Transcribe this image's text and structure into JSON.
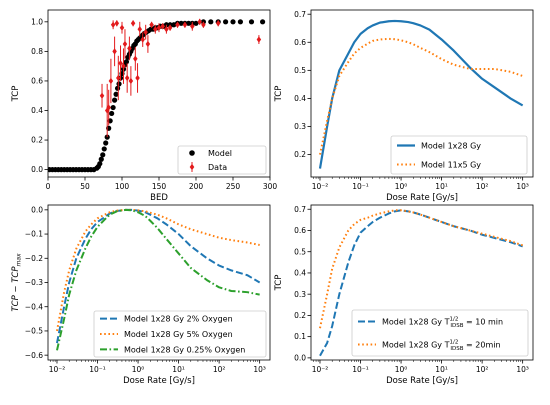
{
  "chart_data": [
    {
      "type": "scatter",
      "xlabel": "BED",
      "ylabel": "TCP",
      "xlim": [
        0,
        300
      ],
      "ylim": [
        -0.05,
        1.08
      ],
      "xticks": [
        0,
        50,
        100,
        150,
        200,
        250,
        300
      ],
      "xtick_labels": [
        "0",
        "50",
        "100",
        "150",
        "200",
        "250",
        "300"
      ],
      "yticks": [
        0.0,
        0.2,
        0.4,
        0.6,
        0.8,
        1.0
      ],
      "ytick_labels": [
        "0.0",
        "0.2",
        "0.4",
        "0.6",
        "0.8",
        "1.0"
      ],
      "legend_position": "bottom-right",
      "series": [
        {
          "name": "Model",
          "color": "#000000",
          "marker": "circle",
          "x": [
            2,
            6,
            10,
            14,
            18,
            22,
            26,
            30,
            34,
            38,
            42,
            46,
            50,
            54,
            58,
            62,
            66,
            68,
            70,
            72,
            74,
            76,
            78,
            80,
            82,
            84,
            86,
            88,
            90,
            92,
            94,
            96,
            98,
            100,
            102,
            104,
            106,
            108,
            110,
            112,
            114,
            116,
            118,
            120,
            122,
            124,
            126,
            128,
            130,
            133,
            136,
            139,
            142,
            145,
            148,
            152,
            156,
            160,
            165,
            170,
            175,
            180,
            185,
            190,
            195,
            200,
            210,
            220,
            230,
            240,
            250,
            260,
            275,
            290
          ],
          "y": [
            0,
            0,
            0,
            0,
            0,
            0,
            0,
            0,
            0,
            0,
            0,
            0,
            0,
            0,
            0,
            0,
            0.01,
            0.02,
            0.04,
            0.07,
            0.1,
            0.14,
            0.18,
            0.22,
            0.28,
            0.33,
            0.38,
            0.42,
            0.47,
            0.51,
            0.55,
            0.58,
            0.62,
            0.65,
            0.68,
            0.71,
            0.73,
            0.76,
            0.78,
            0.8,
            0.82,
            0.84,
            0.85,
            0.87,
            0.88,
            0.89,
            0.9,
            0.91,
            0.92,
            0.93,
            0.94,
            0.95,
            0.95,
            0.96,
            0.96,
            0.97,
            0.97,
            0.98,
            0.98,
            0.98,
            0.99,
            0.99,
            0.99,
            0.99,
            0.99,
            0.99,
            1.0,
            1.0,
            1.0,
            1.0,
            1.0,
            1.0,
            1.0,
            1.0
          ]
        },
        {
          "name": "Data",
          "color": "#e31a1c",
          "marker": "diamond",
          "x": [
            73,
            80,
            82,
            85,
            88,
            90,
            93,
            95,
            98,
            100,
            102,
            104,
            107,
            110,
            112,
            115,
            118,
            121,
            124,
            128,
            132,
            135,
            140,
            145,
            150,
            155,
            160,
            165,
            175,
            185,
            195,
            205,
            210,
            230,
            285
          ],
          "y": [
            0.5,
            0.4,
            0.42,
            0.6,
            0.98,
            0.8,
            0.99,
            0.62,
            0.72,
            0.96,
            0.7,
            0.85,
            0.62,
            0.82,
            0.6,
            0.99,
            0.75,
            0.62,
            0.95,
            0.88,
            0.93,
            0.85,
            0.98,
            0.95,
            0.96,
            0.97,
            0.95,
            0.96,
            0.98,
            0.98,
            0.97,
            1.0,
            0.98,
            0.99,
            0.88
          ],
          "err": [
            0.08,
            0.18,
            0.12,
            0.15,
            0.03,
            0.1,
            0.02,
            0.15,
            0.12,
            0.04,
            0.12,
            0.1,
            0.1,
            0.08,
            0.1,
            0.02,
            0.08,
            0.1,
            0.05,
            0.05,
            0.05,
            0.06,
            0.02,
            0.03,
            0.03,
            0.02,
            0.03,
            0.02,
            0.02,
            0.02,
            0.03,
            0.02,
            0.02,
            0.02,
            0.03
          ]
        }
      ]
    },
    {
      "type": "line",
      "xscale": "log",
      "xlabel": "Dose Rate [Gy/s]",
      "ylabel": "TCP",
      "xlim": [
        0.006,
        1800
      ],
      "ylim": [
        0.12,
        0.715
      ],
      "xticks": [
        0.01,
        0.1,
        1,
        10,
        100,
        1000
      ],
      "xtick_labels": [
        "10⁻²",
        "10⁻¹",
        "10⁰",
        "10¹",
        "10²",
        "10³"
      ],
      "yticks": [
        0.2,
        0.3,
        0.4,
        0.5,
        0.6,
        0.7
      ],
      "ytick_labels": [
        "0.2",
        "0.3",
        "0.4",
        "0.5",
        "0.6",
        "0.7"
      ],
      "legend_position": "bottom-right",
      "series": [
        {
          "name": "Model 1x28 Gy",
          "color": "#1f77b4",
          "style": "solid",
          "x": [
            0.01,
            0.015,
            0.02,
            0.03,
            0.05,
            0.07,
            0.1,
            0.15,
            0.2,
            0.3,
            0.5,
            0.7,
            1,
            1.5,
            2,
            3,
            5,
            10,
            20,
            50,
            100,
            200,
            500,
            1000
          ],
          "y": [
            0.15,
            0.3,
            0.4,
            0.5,
            0.56,
            0.6,
            0.63,
            0.65,
            0.66,
            0.67,
            0.675,
            0.676,
            0.675,
            0.672,
            0.668,
            0.66,
            0.645,
            0.61,
            0.57,
            0.51,
            0.47,
            0.44,
            0.4,
            0.375
          ]
        },
        {
          "name": "Model 11x5 Gy",
          "color": "#ff7f0e",
          "style": "dotted",
          "x": [
            0.01,
            0.015,
            0.02,
            0.03,
            0.05,
            0.07,
            0.1,
            0.15,
            0.2,
            0.3,
            0.5,
            0.7,
            1,
            1.5,
            2,
            3,
            5,
            10,
            20,
            50,
            100,
            200,
            500,
            1000
          ],
          "y": [
            0.2,
            0.32,
            0.4,
            0.48,
            0.53,
            0.56,
            0.58,
            0.595,
            0.605,
            0.61,
            0.612,
            0.611,
            0.607,
            0.6,
            0.593,
            0.58,
            0.565,
            0.54,
            0.52,
            0.505,
            0.505,
            0.505,
            0.495,
            0.48
          ]
        }
      ]
    },
    {
      "type": "line",
      "xscale": "log",
      "xlabel": "Dose Rate [Gy/s]",
      "ylabel": "TCP − TCP",
      "ylabel_subscript": "max",
      "xlim": [
        0.006,
        1800
      ],
      "ylim": [
        -0.62,
        0.02
      ],
      "xticks": [
        0.01,
        0.1,
        1,
        10,
        100,
        1000
      ],
      "xtick_labels": [
        "10⁻²",
        "10⁻¹",
        "10⁰",
        "10¹",
        "10²",
        "10³"
      ],
      "yticks": [
        0.0,
        -0.1,
        -0.2,
        -0.3,
        -0.4,
        -0.5,
        -0.6
      ],
      "ytick_labels": [
        "0.0",
        "−0.1",
        "−0.2",
        "−0.3",
        "−0.4",
        "−0.5",
        "−0.6"
      ],
      "legend_position": "bottom-right",
      "series": [
        {
          "name": "Model 1x28 Gy 2% Oxygen",
          "color": "#1f77b4",
          "style": "dashed",
          "x": [
            0.01,
            0.015,
            0.02,
            0.03,
            0.05,
            0.07,
            0.1,
            0.15,
            0.2,
            0.3,
            0.5,
            0.7,
            1,
            1.5,
            2,
            3,
            5,
            10,
            20,
            50,
            100,
            200,
            500,
            1000
          ],
          "y": [
            -0.55,
            -0.4,
            -0.3,
            -0.2,
            -0.12,
            -0.08,
            -0.05,
            -0.03,
            -0.015,
            -0.005,
            0,
            0,
            -0.003,
            -0.01,
            -0.02,
            -0.035,
            -0.06,
            -0.1,
            -0.15,
            -0.2,
            -0.23,
            -0.25,
            -0.27,
            -0.3
          ]
        },
        {
          "name": "Model 1x28 Gy 5% Oxygen",
          "color": "#ff7f0e",
          "style": "dotted",
          "x": [
            0.01,
            0.015,
            0.02,
            0.03,
            0.05,
            0.07,
            0.1,
            0.15,
            0.2,
            0.3,
            0.5,
            0.7,
            1,
            1.5,
            2,
            3,
            5,
            10,
            20,
            50,
            100,
            200,
            500,
            1000
          ],
          "y": [
            -0.5,
            -0.34,
            -0.25,
            -0.16,
            -0.09,
            -0.06,
            -0.035,
            -0.02,
            -0.01,
            -0.003,
            0,
            0,
            -0.002,
            -0.006,
            -0.012,
            -0.02,
            -0.035,
            -0.06,
            -0.08,
            -0.1,
            -0.115,
            -0.125,
            -0.135,
            -0.145
          ]
        },
        {
          "name": "Model 1x28 Gy 0.25% Oxygen",
          "color": "#2ca02c",
          "style": "dashdot",
          "x": [
            0.01,
            0.015,
            0.02,
            0.03,
            0.05,
            0.07,
            0.1,
            0.15,
            0.2,
            0.3,
            0.5,
            0.7,
            1,
            1.5,
            2,
            3,
            5,
            10,
            20,
            50,
            100,
            200,
            500,
            1000
          ],
          "y": [
            -0.58,
            -0.45,
            -0.35,
            -0.25,
            -0.16,
            -0.11,
            -0.07,
            -0.04,
            -0.02,
            -0.006,
            0,
            -0.002,
            -0.01,
            -0.025,
            -0.045,
            -0.075,
            -0.12,
            -0.18,
            -0.24,
            -0.29,
            -0.32,
            -0.335,
            -0.34,
            -0.35
          ]
        }
      ]
    },
    {
      "type": "line",
      "xscale": "log",
      "xlabel": "Dose Rate [Gy/s]",
      "ylabel": "TCP",
      "xlim": [
        0.006,
        1800
      ],
      "ylim": [
        -0.01,
        0.72
      ],
      "xticks": [
        0.01,
        0.1,
        1,
        10,
        100,
        1000
      ],
      "xtick_labels": [
        "10⁻²",
        "10⁻¹",
        "10⁰",
        "10¹",
        "10²",
        "10³"
      ],
      "yticks": [
        0.0,
        0.1,
        0.2,
        0.3,
        0.4,
        0.5,
        0.6,
        0.7
      ],
      "ytick_labels": [
        "0.0",
        "0.1",
        "0.2",
        "0.3",
        "0.4",
        "0.5",
        "0.6",
        "0.7"
      ],
      "legend_position": "bottom-right",
      "series": [
        {
          "name": "Model 1x28 Gy T",
          "name_super": "1/2",
          "name_sub": "IDSB",
          "name_suffix": " = 10 min",
          "color": "#1f77b4",
          "style": "dashed",
          "x": [
            0.01,
            0.015,
            0.02,
            0.03,
            0.05,
            0.07,
            0.1,
            0.15,
            0.2,
            0.3,
            0.5,
            0.7,
            1,
            1.5,
            2,
            3,
            5,
            10,
            20,
            50,
            100,
            200,
            500,
            1000
          ],
          "y": [
            0.01,
            0.07,
            0.15,
            0.3,
            0.45,
            0.53,
            0.59,
            0.62,
            0.64,
            0.66,
            0.68,
            0.69,
            0.695,
            0.69,
            0.685,
            0.675,
            0.66,
            0.64,
            0.62,
            0.6,
            0.58,
            0.565,
            0.545,
            0.525
          ]
        },
        {
          "name": "Model 1x28 Gy T",
          "name_super": "1/2",
          "name_sub": "IDSB",
          "name_suffix": " = 20min",
          "color": "#ff7f0e",
          "style": "dotted",
          "x": [
            0.01,
            0.015,
            0.02,
            0.03,
            0.05,
            0.07,
            0.1,
            0.15,
            0.2,
            0.3,
            0.5,
            0.7,
            1,
            1.5,
            2,
            3,
            5,
            10,
            20,
            50,
            100,
            200,
            500,
            1000
          ],
          "y": [
            0.14,
            0.3,
            0.42,
            0.52,
            0.6,
            0.63,
            0.65,
            0.66,
            0.67,
            0.68,
            0.69,
            0.695,
            0.695,
            0.69,
            0.685,
            0.675,
            0.66,
            0.64,
            0.62,
            0.6,
            0.585,
            0.57,
            0.55,
            0.53
          ]
        }
      ]
    }
  ]
}
